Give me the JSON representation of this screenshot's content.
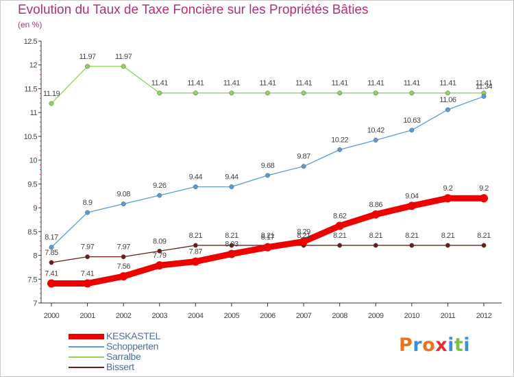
{
  "title": "Evolution du Taux de Taxe Foncière sur les Propriétés Bâties",
  "subtitle": "(en %)",
  "logo": {
    "text": "Proxiti",
    "colors": [
      "#e8731a",
      "#3c8fd8",
      "#e8731a",
      "#e03030",
      "#3c8fd8",
      "#7ac143",
      "#3c8fd8"
    ]
  },
  "chart_data": {
    "type": "line",
    "title": "Evolution du Taux de Taxe Foncière sur les Propriétés Bâties",
    "ylabel": "(en %)",
    "xlabel": "",
    "x": [
      "2000",
      "2001",
      "2002",
      "2003",
      "2004",
      "2005",
      "2006",
      "2007",
      "2008",
      "2009",
      "2010",
      "2011",
      "2012"
    ],
    "ylim": [
      7,
      12.5
    ],
    "yticks": [
      "7",
      "7.5",
      "8",
      "8.5",
      "9",
      "9.5",
      "10",
      "10.5",
      "11",
      "11.5",
      "12",
      "12.5"
    ],
    "series": [
      {
        "name": "KESKASTEL",
        "color": "#ee0000",
        "values": [
          7.41,
          7.41,
          7.56,
          7.79,
          7.87,
          8.03,
          8.17,
          8.29,
          8.62,
          8.86,
          9.04,
          9.2,
          9.2
        ],
        "labels": [
          "7.41",
          "7.41",
          "7.56",
          "7.79",
          "7.87",
          "8.03",
          "8.17",
          "8.29",
          "8.62",
          "8.86",
          "9.04",
          "9.2",
          "9.2"
        ]
      },
      {
        "name": "Schopperten",
        "color": "#5b9bd5",
        "values": [
          8.17,
          8.9,
          9.08,
          9.26,
          9.44,
          9.44,
          9.68,
          9.87,
          10.22,
          10.42,
          10.63,
          11.06,
          11.34
        ],
        "labels": [
          "8.17",
          "8.9",
          "9.08",
          "9.26",
          "9.44",
          "9.44",
          "9.68",
          "9.87",
          "10.22",
          "10.42",
          "10.63",
          "11.06",
          "11.34"
        ]
      },
      {
        "name": "Sarralbe",
        "color": "#8fd45a",
        "values": [
          11.19,
          11.97,
          11.97,
          11.41,
          11.41,
          11.41,
          11.41,
          11.41,
          11.41,
          11.41,
          11.41,
          11.41,
          11.41
        ],
        "labels": [
          "11.19",
          "11.97",
          "11.97",
          "11.41",
          "11.41",
          "11.41",
          "11.41",
          "11.41",
          "11.41",
          "11.41",
          "11.41",
          "11.41",
          "11.41"
        ]
      },
      {
        "name": "Bissert",
        "color": "#6e1a1a",
        "values": [
          7.85,
          7.97,
          7.97,
          8.09,
          8.21,
          8.21,
          8.21,
          8.21,
          8.21,
          8.21,
          8.21,
          8.21,
          8.21
        ],
        "labels": [
          "7.85",
          "7.97",
          "7.97",
          "8.09",
          "8.21",
          "8.21",
          "8.21",
          "8.21",
          "8.21",
          "8.21",
          "8.21",
          "8.21",
          "8.21"
        ]
      }
    ],
    "grid": false,
    "legend_position": "bottom-left"
  }
}
